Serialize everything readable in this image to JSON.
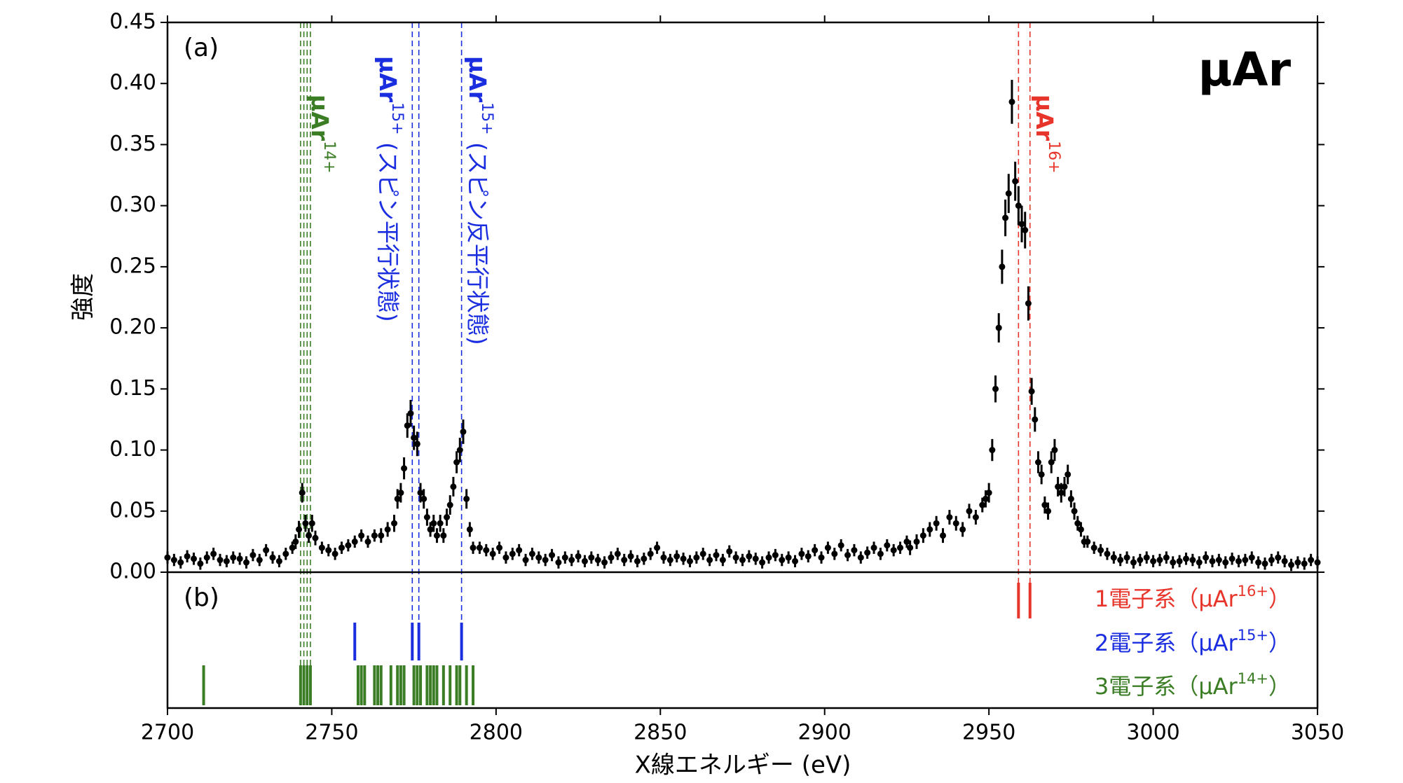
{
  "chart_data": {
    "type": "scatter",
    "title": "μAr",
    "panel_labels": [
      "(a)",
      "(b)"
    ],
    "xlabel": "X線エネルギー (eV)",
    "ylabel": "強度",
    "xlim": [
      2700,
      3050
    ],
    "ylim": [
      0,
      0.45
    ],
    "xticks": [
      2700,
      2750,
      2800,
      2850,
      2900,
      2950,
      3000,
      3050
    ],
    "yticks": [
      {
        "value": 0,
        "label": "0.00"
      },
      {
        "value": 0.05,
        "label": "0.05"
      },
      {
        "value": 0.1,
        "label": "0.10"
      },
      {
        "value": 0.15,
        "label": "0.15"
      },
      {
        "value": 0.2,
        "label": "0.20"
      },
      {
        "value": 0.25,
        "label": "0.25"
      },
      {
        "value": 0.3,
        "label": "0.30"
      },
      {
        "value": 0.35,
        "label": "0.35"
      },
      {
        "value": 0.4,
        "label": "0.40"
      },
      {
        "value": 0.45,
        "label": "0.45"
      }
    ],
    "color": "#000000",
    "x": [
      2700,
      2702,
      2704,
      2706,
      2708,
      2710,
      2712,
      2714,
      2716,
      2718,
      2720,
      2722,
      2724,
      2726,
      2728,
      2730,
      2732,
      2734,
      2736,
      2738,
      2739,
      2740,
      2741,
      2742,
      2743,
      2744,
      2745,
      2747,
      2749,
      2751,
      2753,
      2755,
      2757,
      2759,
      2761,
      2763,
      2765,
      2767,
      2769,
      2770,
      2771,
      2772,
      2773,
      2774,
      2775,
      2776,
      2777,
      2778,
      2779,
      2780,
      2781,
      2782,
      2783,
      2784,
      2785,
      2786,
      2787,
      2788,
      2789,
      2790,
      2791,
      2792,
      2793,
      2795,
      2797,
      2799,
      2801,
      2803,
      2805,
      2807,
      2809,
      2811,
      2813,
      2815,
      2817,
      2819,
      2821,
      2823,
      2825,
      2827,
      2829,
      2831,
      2833,
      2835,
      2837,
      2839,
      2841,
      2843,
      2845,
      2847,
      2849,
      2851,
      2853,
      2855,
      2857,
      2859,
      2861,
      2863,
      2865,
      2867,
      2869,
      2871,
      2873,
      2875,
      2877,
      2879,
      2881,
      2883,
      2885,
      2887,
      2889,
      2891,
      2893,
      2895,
      2897,
      2899,
      2901,
      2903,
      2905,
      2907,
      2909,
      2911,
      2913,
      2915,
      2917,
      2919,
      2921,
      2923,
      2925,
      2926,
      2928,
      2930,
      2932,
      2934,
      2936,
      2938,
      2940,
      2942,
      2944,
      2946,
      2948,
      2949,
      2950,
      2951,
      2952,
      2953,
      2954,
      2955,
      2956,
      2957,
      2958,
      2959,
      2960,
      2961,
      2962,
      2963,
      2964,
      2965,
      2966,
      2967,
      2968,
      2969,
      2970,
      2971,
      2972,
      2973,
      2974,
      2975,
      2976,
      2977,
      2978,
      2979,
      2980,
      2982,
      2984,
      2986,
      2988,
      2990,
      2992,
      2994,
      2996,
      2998,
      3000,
      3002,
      3004,
      3006,
      3008,
      3010,
      3012,
      3014,
      3016,
      3018,
      3020,
      3022,
      3024,
      3026,
      3028,
      3030,
      3032,
      3034,
      3036,
      3038,
      3040,
      3042,
      3044,
      3046,
      3048,
      3050
    ],
    "values": [
      0.012,
      0.01,
      0.008,
      0.013,
      0.011,
      0.007,
      0.012,
      0.015,
      0.01,
      0.009,
      0.012,
      0.011,
      0.008,
      0.014,
      0.01,
      0.018,
      0.012,
      0.009,
      0.015,
      0.02,
      0.025,
      0.035,
      0.065,
      0.04,
      0.03,
      0.04,
      0.028,
      0.02,
      0.018,
      0.015,
      0.02,
      0.022,
      0.025,
      0.03,
      0.025,
      0.03,
      0.03,
      0.035,
      0.04,
      0.06,
      0.065,
      0.085,
      0.12,
      0.13,
      0.11,
      0.105,
      0.065,
      0.06,
      0.045,
      0.035,
      0.04,
      0.03,
      0.04,
      0.03,
      0.045,
      0.055,
      0.07,
      0.09,
      0.1,
      0.115,
      0.06,
      0.035,
      0.02,
      0.02,
      0.018,
      0.015,
      0.02,
      0.012,
      0.015,
      0.018,
      0.01,
      0.015,
      0.012,
      0.01,
      0.014,
      0.008,
      0.012,
      0.01,
      0.013,
      0.009,
      0.012,
      0.01,
      0.008,
      0.012,
      0.015,
      0.01,
      0.013,
      0.009,
      0.011,
      0.015,
      0.02,
      0.012,
      0.01,
      0.013,
      0.011,
      0.009,
      0.012,
      0.015,
      0.01,
      0.014,
      0.01,
      0.017,
      0.012,
      0.01,
      0.013,
      0.011,
      0.008,
      0.012,
      0.014,
      0.01,
      0.012,
      0.009,
      0.015,
      0.013,
      0.018,
      0.012,
      0.02,
      0.015,
      0.022,
      0.014,
      0.018,
      0.012,
      0.016,
      0.02,
      0.015,
      0.022,
      0.018,
      0.02,
      0.025,
      0.02,
      0.025,
      0.03,
      0.035,
      0.04,
      0.03,
      0.045,
      0.04,
      0.035,
      0.05,
      0.045,
      0.055,
      0.06,
      0.065,
      0.1,
      0.15,
      0.2,
      0.25,
      0.29,
      0.31,
      0.385,
      0.32,
      0.3,
      0.285,
      0.28,
      0.22,
      0.148,
      0.125,
      0.09,
      0.08,
      0.055,
      0.05,
      0.09,
      0.1,
      0.07,
      0.065,
      0.07,
      0.08,
      0.06,
      0.05,
      0.04,
      0.035,
      0.025,
      0.025,
      0.02,
      0.018,
      0.015,
      0.012,
      0.01,
      0.012,
      0.008,
      0.01,
      0.012,
      0.009,
      0.01,
      0.012,
      0.008,
      0.009,
      0.011,
      0.01,
      0.008,
      0.012,
      0.009,
      0.01,
      0.008,
      0.011,
      0.009,
      0.01,
      0.012,
      0.008,
      0.007,
      0.01,
      0.012,
      0.009,
      0.006,
      0.008,
      0.007,
      0.01,
      0.008
    ],
    "errors": [
      0.005,
      0.005,
      0.005,
      0.005,
      0.005,
      0.005,
      0.005,
      0.005,
      0.005,
      0.005,
      0.005,
      0.005,
      0.005,
      0.005,
      0.005,
      0.005,
      0.005,
      0.005,
      0.005,
      0.005,
      0.006,
      0.007,
      0.008,
      0.007,
      0.006,
      0.007,
      0.006,
      0.005,
      0.005,
      0.005,
      0.005,
      0.005,
      0.005,
      0.005,
      0.005,
      0.005,
      0.006,
      0.006,
      0.007,
      0.008,
      0.008,
      0.009,
      0.01,
      0.011,
      0.01,
      0.01,
      0.008,
      0.008,
      0.007,
      0.006,
      0.007,
      0.006,
      0.007,
      0.006,
      0.007,
      0.008,
      0.008,
      0.009,
      0.01,
      0.01,
      0.008,
      0.006,
      0.005,
      0.005,
      0.005,
      0.005,
      0.005,
      0.005,
      0.005,
      0.005,
      0.005,
      0.005,
      0.005,
      0.005,
      0.005,
      0.005,
      0.005,
      0.005,
      0.005,
      0.005,
      0.005,
      0.005,
      0.005,
      0.005,
      0.005,
      0.005,
      0.005,
      0.005,
      0.005,
      0.005,
      0.005,
      0.005,
      0.005,
      0.005,
      0.005,
      0.005,
      0.005,
      0.005,
      0.005,
      0.005,
      0.005,
      0.005,
      0.005,
      0.005,
      0.005,
      0.005,
      0.005,
      0.005,
      0.005,
      0.005,
      0.005,
      0.005,
      0.005,
      0.005,
      0.005,
      0.005,
      0.005,
      0.005,
      0.005,
      0.005,
      0.005,
      0.005,
      0.005,
      0.005,
      0.005,
      0.005,
      0.005,
      0.005,
      0.005,
      0.006,
      0.006,
      0.006,
      0.006,
      0.006,
      0.006,
      0.006,
      0.006,
      0.006,
      0.006,
      0.006,
      0.006,
      0.007,
      0.008,
      0.009,
      0.011,
      0.012,
      0.014,
      0.015,
      0.016,
      0.018,
      0.016,
      0.016,
      0.015,
      0.015,
      0.014,
      0.011,
      0.01,
      0.009,
      0.008,
      0.007,
      0.007,
      0.009,
      0.009,
      0.008,
      0.008,
      0.008,
      0.008,
      0.007,
      0.007,
      0.006,
      0.006,
      0.005,
      0.005,
      0.005,
      0.005,
      0.005,
      0.005,
      0.005,
      0.005,
      0.005,
      0.005,
      0.005,
      0.005,
      0.005,
      0.005,
      0.005,
      0.005,
      0.005,
      0.005,
      0.005,
      0.005,
      0.005,
      0.005,
      0.005,
      0.005,
      0.005,
      0.005,
      0.005,
      0.005,
      0.005,
      0.005,
      0.005,
      0.005,
      0.005,
      0.005,
      0.005,
      0.005,
      0.005
    ],
    "transitions": [
      {
        "name": "1電子系（μAr",
        "sup": "16+",
        "close": "）",
        "color": "#e8352b",
        "x": [
          2959,
          2962.5
        ]
      },
      {
        "name": "2電子系（μAr",
        "sup": "15+",
        "close": "）",
        "color": "#1a2ee0",
        "x": [
          2757,
          2774.5,
          2776.5,
          2789.5
        ]
      },
      {
        "name": "3電子系（μAr",
        "sup": "14+",
        "close": "）",
        "color": "#3a7d24",
        "x": [
          2711,
          2740.5,
          2741.5,
          2742.5,
          2743.5,
          2758,
          2759,
          2760,
          2763,
          2764,
          2765,
          2768,
          2770,
          2771,
          2772,
          2775,
          2776,
          2777,
          2779,
          2780,
          2781,
          2782,
          2784,
          2786,
          2788,
          2789,
          2791,
          2793
        ]
      }
    ],
    "marker_lines": [
      {
        "color": "#3a7d24",
        "x": [
          2740.5,
          2741.5,
          2742.5,
          2743.5
        ],
        "group": 2,
        "labels": [
          {
            "base": "μAr",
            "sup": "14+",
            "rest": ""
          }
        ]
      },
      {
        "color": "#1a2ee0",
        "x": [
          2774.5,
          2776.5
        ],
        "group": 1,
        "labels": [
          {
            "base": "μAr",
            "sup": "15+",
            "rest": " (スピン平行状態)"
          }
        ]
      },
      {
        "color": "#1a2ee0",
        "x": [
          2789.5
        ],
        "group": 1,
        "labels": [
          {
            "base": "μAr",
            "sup": "15+",
            "rest": " (スピン反平行状態)"
          }
        ]
      },
      {
        "color": "#e8352b",
        "x": [
          2959,
          2962.5
        ],
        "group": 0,
        "labels": [
          {
            "base": "μAr",
            "sup": "16+",
            "rest": ""
          }
        ]
      }
    ]
  }
}
